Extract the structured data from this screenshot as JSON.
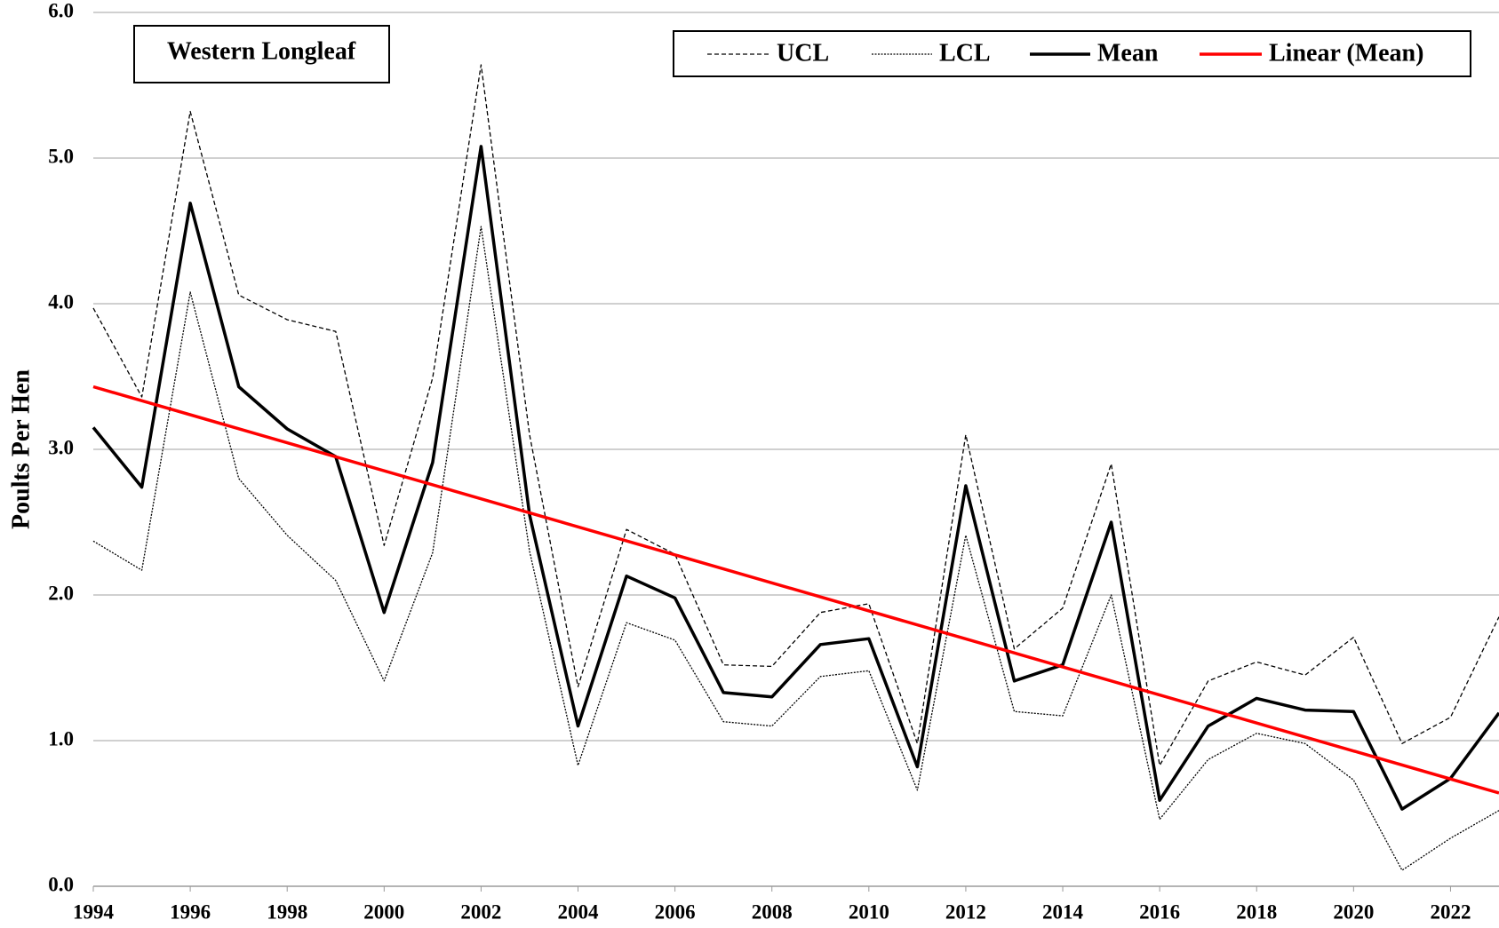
{
  "chart_data": {
    "type": "line",
    "annotation": "Western Longleaf",
    "y_label": "Poults Per Hen",
    "x": [
      1994,
      1995,
      1996,
      1997,
      1998,
      1999,
      2000,
      2001,
      2002,
      2003,
      2004,
      2005,
      2006,
      2007,
      2008,
      2009,
      2010,
      2011,
      2012,
      2013,
      2014,
      2015,
      2016,
      2017,
      2018,
      2019,
      2020,
      2021,
      2022,
      2023
    ],
    "xlim": [
      1994,
      2023
    ],
    "xticks": [
      1994,
      1996,
      1998,
      2000,
      2002,
      2004,
      2006,
      2008,
      2010,
      2012,
      2014,
      2016,
      2018,
      2020,
      2022
    ],
    "ylim": [
      0,
      6
    ],
    "yticks": [
      {
        "value": 0,
        "label": "0.0"
      },
      {
        "value": 1,
        "label": "1.0"
      },
      {
        "value": 2,
        "label": "2.0"
      },
      {
        "value": 3,
        "label": "3.0"
      },
      {
        "value": 4,
        "label": "4.0"
      },
      {
        "value": 5,
        "label": "5.0"
      },
      {
        "value": 6,
        "label": "6.0"
      }
    ],
    "grid": true,
    "legend": "top-right",
    "series": [
      {
        "name": "UCL",
        "color": "#000000",
        "dash": "dashed",
        "values": [
          3.97,
          3.36,
          5.32,
          4.06,
          3.89,
          3.81,
          2.34,
          3.49,
          5.64,
          3.1,
          1.37,
          2.45,
          2.28,
          1.52,
          1.51,
          1.88,
          1.94,
          0.98,
          3.1,
          1.63,
          1.91,
          2.9,
          0.83,
          1.41,
          1.54,
          1.45,
          1.71,
          0.98,
          1.16,
          1.85
        ]
      },
      {
        "name": "LCL",
        "color": "#000000",
        "dash": "dotted",
        "values": [
          2.37,
          2.17,
          4.08,
          2.8,
          2.41,
          2.1,
          1.41,
          2.29,
          4.53,
          2.3,
          0.83,
          1.81,
          1.69,
          1.13,
          1.1,
          1.44,
          1.48,
          0.66,
          2.41,
          1.2,
          1.17,
          2.0,
          0.46,
          0.87,
          1.05,
          0.98,
          0.73,
          0.11,
          0.33,
          0.52
        ]
      },
      {
        "name": "Mean",
        "color": "#000000",
        "dash": "solid",
        "values": [
          3.15,
          2.74,
          4.69,
          3.43,
          3.14,
          2.95,
          1.88,
          2.91,
          5.08,
          2.55,
          1.1,
          2.13,
          1.98,
          1.33,
          1.3,
          1.66,
          1.7,
          0.82,
          2.75,
          1.41,
          1.52,
          2.5,
          0.59,
          1.1,
          1.29,
          1.21,
          1.2,
          0.53,
          0.74,
          1.19
        ]
      },
      {
        "name": "Linear (Mean)",
        "color": "#ff0000",
        "dash": "solid",
        "x": [
          1994,
          2023
        ],
        "values": [
          3.43,
          0.64
        ]
      }
    ]
  }
}
